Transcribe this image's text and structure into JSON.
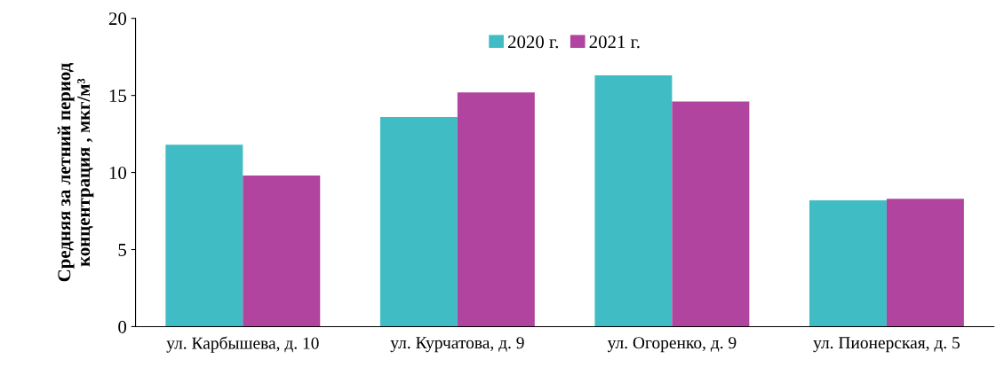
{
  "chart_data": {
    "type": "bar",
    "ylabel": "Средняя за летний период\nконцентрация , мкг/м³",
    "categories": [
      "ул. Карбышева, д. 10",
      "ул. Курчатова, д. 9",
      "ул. Огоренко, д. 9",
      "ул. Пионерская, д. 5"
    ],
    "series": [
      {
        "name": "2020 г.",
        "color": "#3fbcc4",
        "values": [
          11.8,
          13.6,
          16.3,
          8.2
        ]
      },
      {
        "name": "2021 г.",
        "color": "#b0449e",
        "values": [
          9.8,
          15.2,
          14.6,
          8.3
        ]
      }
    ],
    "ylim": [
      0,
      20
    ],
    "yticks": [
      0,
      5,
      10,
      15,
      20
    ],
    "grid": false,
    "legend": "top"
  }
}
